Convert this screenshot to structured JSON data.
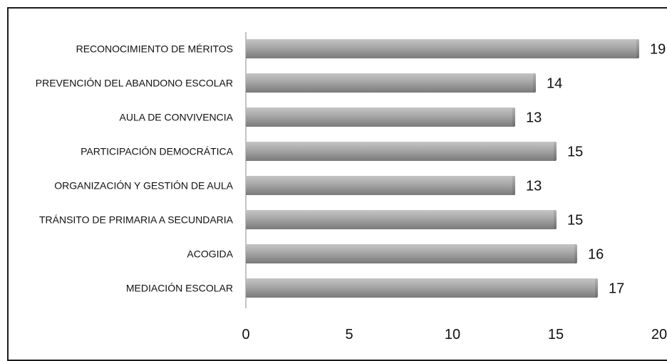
{
  "chart_data": {
    "type": "bar",
    "orientation": "horizontal",
    "title": "",
    "xlabel": "",
    "ylabel": "",
    "categories": [
      "RECONOCIMIENTO DE MÉRITOS",
      "PREVENCIÓN DEL ABANDONO ESCOLAR",
      "AULA DE CONVIVENCIA",
      "PARTICIPACIÓN DEMOCRÁTICA",
      "ORGANIZACIÓN Y GESTIÓN DE AULA",
      "TRÁNSITO DE PRIMARIA A SECUNDARIA",
      "ACOGIDA",
      "MEDIACIÓN ESCOLAR"
    ],
    "values": [
      19,
      14,
      13,
      15,
      13,
      15,
      16,
      17
    ],
    "data_labels": [
      "19",
      "14",
      "13",
      "15",
      "13",
      "15",
      "16",
      "17"
    ],
    "xlim": [
      0,
      20
    ],
    "x_ticks": [
      "0",
      "5",
      "10",
      "15",
      "20"
    ],
    "grid": false,
    "legend": "none",
    "bar_color": "#9a9a9a"
  }
}
